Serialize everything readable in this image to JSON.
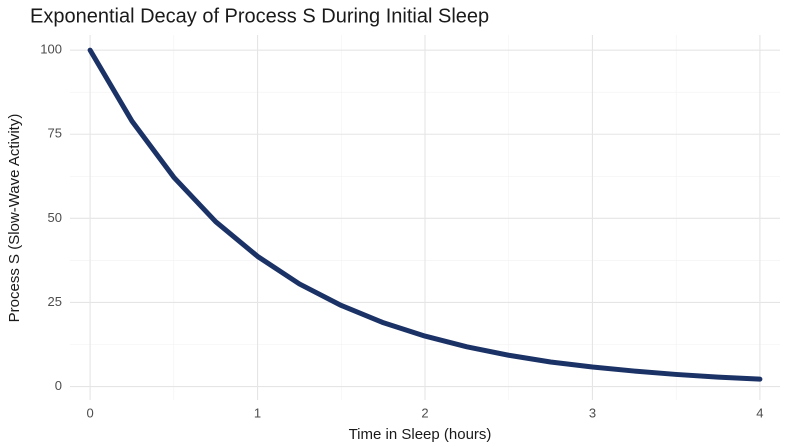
{
  "chart_data": {
    "type": "line",
    "title": "Exponential Decay of Process S During Initial Sleep",
    "x_label": "Time in Sleep (hours)",
    "y_label": "Process S (Slow-Wave Activity)",
    "x": [
      0,
      0.25,
      0.5,
      0.75,
      1,
      1.25,
      1.5,
      1.75,
      2,
      2.25,
      2.5,
      2.75,
      3,
      3.25,
      3.5,
      3.75,
      4
    ],
    "series": [
      {
        "name": "Process S",
        "color": "#1b3266",
        "values": [
          100,
          78.9,
          62.2,
          49.0,
          38.7,
          30.5,
          24.1,
          19.0,
          15.0,
          11.8,
          9.3,
          7.3,
          5.8,
          4.6,
          3.6,
          2.8,
          2.2
        ]
      }
    ],
    "xlim": [
      -0.12,
      4.12
    ],
    "xticks": [
      0,
      1,
      2,
      3,
      4
    ],
    "ylim": [
      -4,
      104.5
    ],
    "yticks": [
      0,
      25,
      50,
      75,
      100
    ],
    "grid": true
  }
}
